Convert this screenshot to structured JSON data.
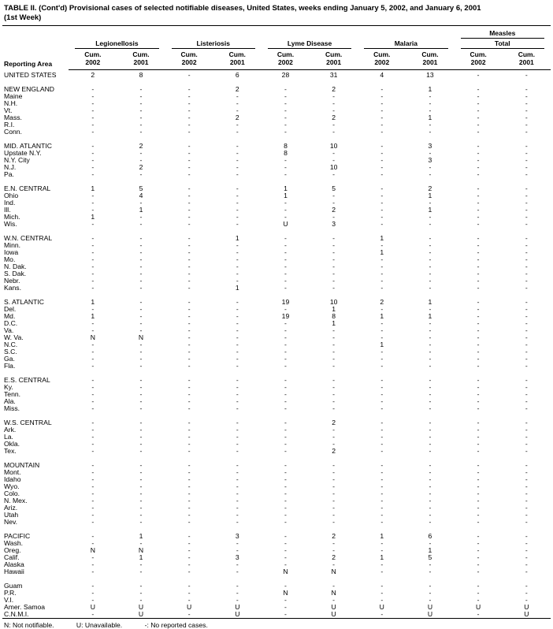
{
  "title": {
    "line1": "TABLE II. (Cont'd) Provisional cases of selected notifiable diseases, United States, weeks ending January 5, 2002, and January 6, 2001",
    "line2": "(1st Week)"
  },
  "header": {
    "reporting_area_label": "Reporting Area",
    "groups": [
      {
        "line1": "Legionellosis"
      },
      {
        "line1": "Listeriosis"
      },
      {
        "line1": "Lyme Disease"
      },
      {
        "line1": "Malaria"
      },
      {
        "line1": "Measles",
        "line2": "Total"
      }
    ],
    "sub_columns": [
      {
        "l1": "Cum.",
        "l2": "2002"
      },
      {
        "l1": "Cum.",
        "l2": "2001"
      },
      {
        "l1": "Cum.",
        "l2": "2002"
      },
      {
        "l1": "Cum.",
        "l2": "2001"
      },
      {
        "l1": "Cum.",
        "l2": "2002"
      },
      {
        "l1": "Cum.",
        "l2": "2001"
      },
      {
        "l1": "Cum.",
        "l2": "2002"
      },
      {
        "l1": "Cum.",
        "l2": "2001"
      },
      {
        "l1": "Cum.",
        "l2": "2002"
      },
      {
        "l1": "Cum.",
        "l2": "2001"
      }
    ]
  },
  "rows": [
    {
      "kind": "total",
      "area": "UNITED STATES",
      "values": [
        "2",
        "8",
        "-",
        "6",
        "28",
        "31",
        "4",
        "13",
        "-",
        "-"
      ]
    },
    {
      "kind": "spacer"
    },
    {
      "kind": "region",
      "area": "NEW ENGLAND",
      "values": [
        "-",
        "-",
        "-",
        "2",
        "-",
        "2",
        "-",
        "1",
        "-",
        "-"
      ]
    },
    {
      "kind": "state",
      "area": "Maine",
      "values": [
        "-",
        "-",
        "-",
        "-",
        "-",
        "-",
        "-",
        "-",
        "-",
        "-"
      ]
    },
    {
      "kind": "state",
      "area": "N.H.",
      "values": [
        "-",
        "-",
        "-",
        "-",
        "-",
        "-",
        "-",
        "-",
        "-",
        "-"
      ]
    },
    {
      "kind": "state",
      "area": "Vt.",
      "values": [
        "-",
        "-",
        "-",
        "-",
        "-",
        "-",
        "-",
        "-",
        "-",
        "-"
      ]
    },
    {
      "kind": "state",
      "area": "Mass.",
      "values": [
        "-",
        "-",
        "-",
        "2",
        "-",
        "2",
        "-",
        "1",
        "-",
        "-"
      ]
    },
    {
      "kind": "state",
      "area": "R.I.",
      "values": [
        "-",
        "-",
        "-",
        "-",
        "-",
        "-",
        "-",
        "-",
        "-",
        "-"
      ]
    },
    {
      "kind": "state",
      "area": "Conn.",
      "values": [
        "-",
        "-",
        "-",
        "-",
        "-",
        "-",
        "-",
        "-",
        "-",
        "-"
      ]
    },
    {
      "kind": "spacer"
    },
    {
      "kind": "region",
      "area": "MID. ATLANTIC",
      "values": [
        "-",
        "2",
        "-",
        "-",
        "8",
        "10",
        "-",
        "3",
        "-",
        "-"
      ]
    },
    {
      "kind": "state",
      "area": "Upstate N.Y.",
      "values": [
        "-",
        "-",
        "-",
        "-",
        "8",
        "-",
        "-",
        "-",
        "-",
        "-"
      ]
    },
    {
      "kind": "state",
      "area": "N.Y. City",
      "values": [
        "-",
        "-",
        "-",
        "-",
        "-",
        "-",
        "-",
        "3",
        "-",
        "-"
      ]
    },
    {
      "kind": "state",
      "area": "N.J.",
      "values": [
        "-",
        "2",
        "-",
        "-",
        "-",
        "10",
        "-",
        "-",
        "-",
        "-"
      ]
    },
    {
      "kind": "state",
      "area": "Pa.",
      "values": [
        "-",
        "-",
        "-",
        "-",
        "-",
        "-",
        "-",
        "-",
        "-",
        "-"
      ]
    },
    {
      "kind": "spacer"
    },
    {
      "kind": "region",
      "area": "E.N. CENTRAL",
      "values": [
        "1",
        "5",
        "-",
        "-",
        "1",
        "5",
        "-",
        "2",
        "-",
        "-"
      ]
    },
    {
      "kind": "state",
      "area": "Ohio",
      "values": [
        "-",
        "4",
        "-",
        "-",
        "1",
        "-",
        "-",
        "1",
        "-",
        "-"
      ]
    },
    {
      "kind": "state",
      "area": "Ind.",
      "values": [
        "-",
        "-",
        "-",
        "-",
        "-",
        "-",
        "-",
        "-",
        "-",
        "-"
      ]
    },
    {
      "kind": "state",
      "area": "Ill.",
      "values": [
        "-",
        "1",
        "-",
        "-",
        "-",
        "2",
        "-",
        "1",
        "-",
        "-"
      ]
    },
    {
      "kind": "state",
      "area": "Mich.",
      "values": [
        "1",
        "-",
        "-",
        "-",
        "-",
        "-",
        "-",
        "-",
        "-",
        "-"
      ]
    },
    {
      "kind": "state",
      "area": "Wis.",
      "values": [
        "-",
        "-",
        "-",
        "-",
        "U",
        "3",
        "-",
        "-",
        "-",
        "-"
      ]
    },
    {
      "kind": "spacer"
    },
    {
      "kind": "region",
      "area": "W.N. CENTRAL",
      "values": [
        "-",
        "-",
        "-",
        "1",
        "-",
        "-",
        "1",
        "-",
        "-",
        "-"
      ]
    },
    {
      "kind": "state",
      "area": "Minn.",
      "values": [
        "-",
        "-",
        "-",
        "-",
        "-",
        "-",
        "-",
        "-",
        "-",
        "-"
      ]
    },
    {
      "kind": "state",
      "area": "Iowa",
      "values": [
        "-",
        "-",
        "-",
        "-",
        "-",
        "-",
        "1",
        "-",
        "-",
        "-"
      ]
    },
    {
      "kind": "state",
      "area": "Mo.",
      "values": [
        "-",
        "-",
        "-",
        "-",
        "-",
        "-",
        "-",
        "-",
        "-",
        "-"
      ]
    },
    {
      "kind": "state",
      "area": "N. Dak.",
      "values": [
        "-",
        "-",
        "-",
        "-",
        "-",
        "-",
        "-",
        "-",
        "-",
        "-"
      ]
    },
    {
      "kind": "state",
      "area": "S. Dak.",
      "values": [
        "-",
        "-",
        "-",
        "-",
        "-",
        "-",
        "-",
        "-",
        "-",
        "-"
      ]
    },
    {
      "kind": "state",
      "area": "Nebr.",
      "values": [
        "-",
        "-",
        "-",
        "-",
        "-",
        "-",
        "-",
        "-",
        "-",
        "-"
      ]
    },
    {
      "kind": "state",
      "area": "Kans.",
      "values": [
        "-",
        "-",
        "-",
        "1",
        "-",
        "-",
        "-",
        "-",
        "-",
        "-"
      ]
    },
    {
      "kind": "spacer"
    },
    {
      "kind": "region",
      "area": "S. ATLANTIC",
      "values": [
        "1",
        "-",
        "-",
        "-",
        "19",
        "10",
        "2",
        "1",
        "-",
        "-"
      ]
    },
    {
      "kind": "state",
      "area": "Del.",
      "values": [
        "-",
        "-",
        "-",
        "-",
        "-",
        "1",
        "-",
        "-",
        "-",
        "-"
      ]
    },
    {
      "kind": "state",
      "area": "Md.",
      "values": [
        "1",
        "-",
        "-",
        "-",
        "19",
        "8",
        "1",
        "1",
        "-",
        "-"
      ]
    },
    {
      "kind": "state",
      "area": "D.C.",
      "values": [
        "-",
        "-",
        "-",
        "-",
        "-",
        "1",
        "-",
        "-",
        "-",
        "-"
      ]
    },
    {
      "kind": "state",
      "area": "Va.",
      "values": [
        "-",
        "-",
        "-",
        "-",
        "-",
        "-",
        "-",
        "-",
        "-",
        "-"
      ]
    },
    {
      "kind": "state",
      "area": "W. Va.",
      "values": [
        "N",
        "N",
        "-",
        "-",
        "-",
        "-",
        "-",
        "-",
        "-",
        "-"
      ]
    },
    {
      "kind": "state",
      "area": "N.C.",
      "values": [
        "-",
        "-",
        "-",
        "-",
        "-",
        "-",
        "1",
        "-",
        "-",
        "-"
      ]
    },
    {
      "kind": "state",
      "area": "S.C.",
      "values": [
        "-",
        "-",
        "-",
        "-",
        "-",
        "-",
        "-",
        "-",
        "-",
        "-"
      ]
    },
    {
      "kind": "state",
      "area": "Ga.",
      "values": [
        "-",
        "-",
        "-",
        "-",
        "-",
        "-",
        "-",
        "-",
        "-",
        "-"
      ]
    },
    {
      "kind": "state",
      "area": "Fla.",
      "values": [
        "-",
        "-",
        "-",
        "-",
        "-",
        "-",
        "-",
        "-",
        "-",
        "-"
      ]
    },
    {
      "kind": "spacer"
    },
    {
      "kind": "region",
      "area": "E.S. CENTRAL",
      "values": [
        "-",
        "-",
        "-",
        "-",
        "-",
        "-",
        "-",
        "-",
        "-",
        "-"
      ]
    },
    {
      "kind": "state",
      "area": "Ky.",
      "values": [
        "-",
        "-",
        "-",
        "-",
        "-",
        "-",
        "-",
        "-",
        "-",
        "-"
      ]
    },
    {
      "kind": "state",
      "area": "Tenn.",
      "values": [
        "-",
        "-",
        "-",
        "-",
        "-",
        "-",
        "-",
        "-",
        "-",
        "-"
      ]
    },
    {
      "kind": "state",
      "area": "Ala.",
      "values": [
        "-",
        "-",
        "-",
        "-",
        "-",
        "-",
        "-",
        "-",
        "-",
        "-"
      ]
    },
    {
      "kind": "state",
      "area": "Miss.",
      "values": [
        "-",
        "-",
        "-",
        "-",
        "-",
        "-",
        "-",
        "-",
        "-",
        "-"
      ]
    },
    {
      "kind": "spacer"
    },
    {
      "kind": "region",
      "area": "W.S. CENTRAL",
      "values": [
        "-",
        "-",
        "-",
        "-",
        "-",
        "2",
        "-",
        "-",
        "-",
        "-"
      ]
    },
    {
      "kind": "state",
      "area": "Ark.",
      "values": [
        "-",
        "-",
        "-",
        "-",
        "-",
        "-",
        "-",
        "-",
        "-",
        "-"
      ]
    },
    {
      "kind": "state",
      "area": "La.",
      "values": [
        "-",
        "-",
        "-",
        "-",
        "-",
        "-",
        "-",
        "-",
        "-",
        "-"
      ]
    },
    {
      "kind": "state",
      "area": "Okla.",
      "values": [
        "-",
        "-",
        "-",
        "-",
        "-",
        "-",
        "-",
        "-",
        "-",
        "-"
      ]
    },
    {
      "kind": "state",
      "area": "Tex.",
      "values": [
        "-",
        "-",
        "-",
        "-",
        "-",
        "2",
        "-",
        "-",
        "-",
        "-"
      ]
    },
    {
      "kind": "spacer"
    },
    {
      "kind": "region",
      "area": "MOUNTAIN",
      "values": [
        "-",
        "-",
        "-",
        "-",
        "-",
        "-",
        "-",
        "-",
        "-",
        "-"
      ]
    },
    {
      "kind": "state",
      "area": "Mont.",
      "values": [
        "-",
        "-",
        "-",
        "-",
        "-",
        "-",
        "-",
        "-",
        "-",
        "-"
      ]
    },
    {
      "kind": "state",
      "area": "Idaho",
      "values": [
        "-",
        "-",
        "-",
        "-",
        "-",
        "-",
        "-",
        "-",
        "-",
        "-"
      ]
    },
    {
      "kind": "state",
      "area": "Wyo.",
      "values": [
        "-",
        "-",
        "-",
        "-",
        "-",
        "-",
        "-",
        "-",
        "-",
        "-"
      ]
    },
    {
      "kind": "state",
      "area": "Colo.",
      "values": [
        "-",
        "-",
        "-",
        "-",
        "-",
        "-",
        "-",
        "-",
        "-",
        "-"
      ]
    },
    {
      "kind": "state",
      "area": "N. Mex.",
      "values": [
        "-",
        "-",
        "-",
        "-",
        "-",
        "-",
        "-",
        "-",
        "-",
        "-"
      ]
    },
    {
      "kind": "state",
      "area": "Ariz.",
      "values": [
        "-",
        "-",
        "-",
        "-",
        "-",
        "-",
        "-",
        "-",
        "-",
        "-"
      ]
    },
    {
      "kind": "state",
      "area": "Utah",
      "values": [
        "-",
        "-",
        "-",
        "-",
        "-",
        "-",
        "-",
        "-",
        "-",
        "-"
      ]
    },
    {
      "kind": "state",
      "area": "Nev.",
      "values": [
        "-",
        "-",
        "-",
        "-",
        "-",
        "-",
        "-",
        "-",
        "-",
        "-"
      ]
    },
    {
      "kind": "spacer"
    },
    {
      "kind": "region",
      "area": "PACIFIC",
      "values": [
        "-",
        "1",
        "-",
        "3",
        "-",
        "2",
        "1",
        "6",
        "-",
        "-"
      ]
    },
    {
      "kind": "state",
      "area": "Wash.",
      "values": [
        "-",
        "-",
        "-",
        "-",
        "-",
        "-",
        "-",
        "-",
        "-",
        "-"
      ]
    },
    {
      "kind": "state",
      "area": "Oreg.",
      "values": [
        "N",
        "N",
        "-",
        "-",
        "-",
        "-",
        "-",
        "1",
        "-",
        "-"
      ]
    },
    {
      "kind": "state",
      "area": "Calif.",
      "values": [
        "-",
        "1",
        "-",
        "3",
        "-",
        "2",
        "1",
        "5",
        "-",
        "-"
      ]
    },
    {
      "kind": "state",
      "area": "Alaska",
      "values": [
        "-",
        "-",
        "-",
        "-",
        "-",
        "-",
        "-",
        "-",
        "-",
        "-"
      ]
    },
    {
      "kind": "state",
      "area": "Hawaii",
      "values": [
        "-",
        "-",
        "-",
        "-",
        "N",
        "N",
        "-",
        "-",
        "-",
        "-"
      ]
    },
    {
      "kind": "spacer"
    },
    {
      "kind": "territory",
      "area": "Guam",
      "values": [
        "-",
        "-",
        "-",
        "-",
        "-",
        "-",
        "-",
        "-",
        "-",
        "-"
      ]
    },
    {
      "kind": "territory",
      "area": "P.R.",
      "values": [
        "-",
        "-",
        "-",
        "-",
        "N",
        "N",
        "-",
        "-",
        "-",
        "-"
      ]
    },
    {
      "kind": "territory",
      "area": "V.I.",
      "values": [
        "-",
        "-",
        "-",
        "-",
        "-",
        "-",
        "-",
        "-",
        "-",
        "-"
      ]
    },
    {
      "kind": "territory",
      "area": "Amer. Samoa",
      "values": [
        "U",
        "U",
        "U",
        "U",
        "-",
        "U",
        "U",
        "U",
        "U",
        "U"
      ]
    },
    {
      "kind": "territory",
      "area": "C.N.M.I.",
      "values": [
        "-",
        "U",
        "-",
        "U",
        "-",
        "U",
        "-",
        "U",
        "-",
        "U"
      ]
    }
  ],
  "footnotes": [
    "N: Not notifiable.",
    "U: Unavailable.",
    "-: No reported cases."
  ]
}
